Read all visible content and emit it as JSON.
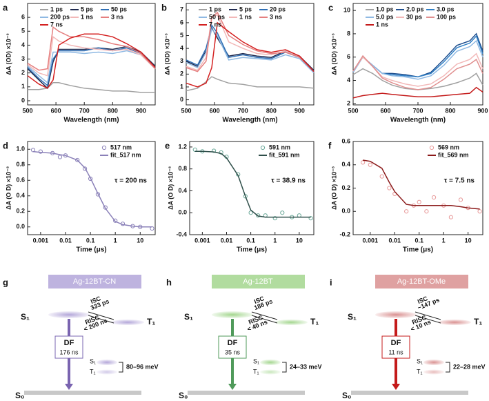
{
  "chart_data": [
    {
      "type": "line",
      "label": "a",
      "x_label": "Wavelength (nm)",
      "y_label": "ΔA (OD) ×10⁻³",
      "x": [
        500,
        540,
        570,
        590,
        610,
        650,
        700,
        750,
        800,
        850,
        900,
        950
      ],
      "xlim": [
        500,
        950
      ],
      "xticks": [
        500,
        600,
        700,
        800,
        900
      ],
      "ylim": [
        -0.3,
        7
      ],
      "yticks": [
        0,
        1,
        2,
        3,
        4,
        5,
        6
      ],
      "legend": "upper center",
      "legend_columns": 3,
      "series": [
        {
          "name": "1 ps",
          "color": "#a0a0a0",
          "values": [
            0.8,
            0.8,
            0.9,
            1.3,
            1.3,
            1.1,
            0.9,
            0.8,
            0.7,
            0.7,
            0.6,
            0.6
          ]
        },
        {
          "name": "5 ps",
          "color": "#1f2a4f",
          "values": [
            2.3,
            1.5,
            0.9,
            2.8,
            3.7,
            3.7,
            3.7,
            3.8,
            3.7,
            3.9,
            3.5,
            2.5
          ]
        },
        {
          "name": "50 ps",
          "color": "#2f6fb5",
          "values": [
            2.4,
            1.6,
            1.1,
            3.0,
            3.6,
            3.6,
            3.6,
            3.8,
            3.6,
            3.8,
            3.4,
            2.4
          ]
        },
        {
          "name": "200 ps",
          "color": "#8fb9e3",
          "values": [
            2.5,
            1.8,
            1.3,
            3.5,
            3.5,
            3.5,
            3.4,
            3.5,
            3.4,
            3.6,
            3.3,
            2.3
          ]
        },
        {
          "name": "1 ns",
          "color": "#f2b8b8",
          "values": [
            2.6,
            2.0,
            1.8,
            4.6,
            4.3,
            4.0,
            3.8,
            3.7,
            3.6,
            3.7,
            3.3,
            2.3
          ]
        },
        {
          "name": "3 ns",
          "color": "#e57f7f",
          "values": [
            2.7,
            2.2,
            2.3,
            5.3,
            5.0,
            4.6,
            4.6,
            4.4,
            4.1,
            3.9,
            3.4,
            2.3
          ]
        },
        {
          "name": "7 ns",
          "color": "#d42020",
          "values": [
            1.8,
            1.2,
            0.9,
            1.5,
            4.0,
            4.5,
            4.8,
            4.8,
            4.6,
            4.1,
            3.5,
            2.4
          ]
        }
      ]
    },
    {
      "type": "line",
      "label": "b",
      "x_label": "Wavelength (nm)",
      "y_label": "ΔA (OD) ×10⁻³",
      "x": [
        500,
        540,
        570,
        590,
        610,
        650,
        700,
        750,
        800,
        850,
        900,
        950
      ],
      "xlim": [
        500,
        950
      ],
      "xticks": [
        500,
        600,
        700,
        800,
        900
      ],
      "ylim": [
        -0.4,
        7.5
      ],
      "yticks": [
        0,
        1,
        2,
        3,
        4,
        5,
        6,
        7
      ],
      "legend": "upper center",
      "legend_columns": 3,
      "series": [
        {
          "name": "1 ps",
          "color": "#a0a0a0",
          "values": [
            0.7,
            0.9,
            1.4,
            1.8,
            1.6,
            1.3,
            1.2,
            1.0,
            1.0,
            1.0,
            1.0,
            0.9
          ]
        },
        {
          "name": "5 ps",
          "color": "#1f2a4f",
          "values": [
            3.0,
            2.6,
            3.8,
            5.6,
            4.8,
            3.4,
            3.6,
            3.4,
            3.3,
            3.8,
            3.4,
            2.3
          ]
        },
        {
          "name": "20 ps",
          "color": "#2f6fb5",
          "values": [
            3.1,
            2.7,
            4.0,
            5.8,
            5.2,
            3.3,
            3.5,
            3.3,
            3.2,
            3.7,
            3.3,
            2.2
          ]
        },
        {
          "name": "50 ps",
          "color": "#8fb9e3",
          "values": [
            2.9,
            2.5,
            3.7,
            5.5,
            5.0,
            3.1,
            3.3,
            3.2,
            3.1,
            3.5,
            3.2,
            2.1
          ]
        },
        {
          "name": "1 ns",
          "color": "#f2b8b8",
          "values": [
            2.6,
            2.3,
            3.3,
            6.5,
            6.6,
            4.5,
            4.0,
            3.6,
            3.5,
            3.8,
            3.4,
            2.2
          ]
        },
        {
          "name": "3 ns",
          "color": "#e57f7f",
          "values": [
            2.5,
            2.2,
            3.0,
            6.4,
            6.8,
            5.0,
            4.3,
            3.8,
            3.6,
            3.7,
            3.3,
            2.2
          ]
        },
        {
          "name": "7 ns",
          "color": "#d42020",
          "values": [
            1.3,
            1.0,
            1.3,
            2.5,
            6.0,
            5.3,
            4.5,
            3.9,
            3.7,
            3.9,
            3.4,
            2.2
          ]
        }
      ]
    },
    {
      "type": "line",
      "label": "c",
      "x_label": "Wavelength (nm)",
      "y_label": "ΔA (OD) ×10⁻³",
      "x": [
        500,
        530,
        560,
        590,
        620,
        660,
        700,
        740,
        780,
        820,
        860,
        880,
        900
      ],
      "xlim": [
        500,
        900
      ],
      "xticks": [
        500,
        600,
        700,
        800,
        900
      ],
      "ylim": [
        1.9,
        10.6
      ],
      "yticks": [
        2,
        4,
        6,
        8,
        10
      ],
      "legend": "upper center",
      "legend_columns": 3,
      "series": [
        {
          "name": "1.0 ps",
          "color": "#a0a0a0",
          "values": [
            4.5,
            5.0,
            4.6,
            4.0,
            3.6,
            3.3,
            3.2,
            3.3,
            3.5,
            3.8,
            4.2,
            4.6,
            3.6
          ]
        },
        {
          "name": "2.0 ps",
          "color": "#1f4f8f",
          "values": [
            4.8,
            6.0,
            5.3,
            4.6,
            4.6,
            4.5,
            4.3,
            4.7,
            5.8,
            7.0,
            7.4,
            8.0,
            6.5
          ]
        },
        {
          "name": "3.0 ps",
          "color": "#2f7fc5",
          "values": [
            4.7,
            6.0,
            5.3,
            4.6,
            4.5,
            4.4,
            4.3,
            4.6,
            5.6,
            6.8,
            7.2,
            7.8,
            6.3
          ]
        },
        {
          "name": "5.0 ps",
          "color": "#8fb9e3",
          "values": [
            4.7,
            6.0,
            5.3,
            4.6,
            4.4,
            4.3,
            4.1,
            4.4,
            5.3,
            6.5,
            6.9,
            7.4,
            6.0
          ]
        },
        {
          "name": "30 ps",
          "color": "#f2b8b8",
          "values": [
            4.8,
            6.0,
            5.2,
            4.3,
            4.0,
            3.7,
            3.5,
            3.7,
            4.4,
            5.4,
            5.8,
            6.3,
            5.0
          ]
        },
        {
          "name": "100 ps",
          "color": "#e08f8f",
          "values": [
            4.8,
            6.1,
            5.2,
            4.2,
            3.8,
            3.4,
            3.2,
            3.4,
            4.1,
            5.0,
            5.4,
            5.8,
            4.6
          ]
        },
        {
          "name": "1 ns",
          "color": "#c41a1a",
          "values": [
            2.5,
            2.7,
            2.8,
            2.9,
            2.8,
            2.7,
            2.6,
            2.6,
            2.7,
            2.8,
            2.9,
            3.4,
            3.0
          ]
        }
      ]
    },
    {
      "type": "scatter",
      "label": "d",
      "x_label": "Time (μs)",
      "y_label": "ΔA (O D) ×10⁻³",
      "xscale": "log",
      "annotation": "τ = 200 ns",
      "x": [
        0.0005,
        0.001,
        0.003,
        0.006,
        0.01,
        0.03,
        0.06,
        0.1,
        0.2,
        0.4,
        1,
        2,
        5,
        10,
        30
      ],
      "xlim": [
        0.0003,
        40
      ],
      "xticks": [
        0.001,
        0.01,
        0.1,
        1,
        10
      ],
      "ylim": [
        -0.1,
        1.1
      ],
      "yticks": [
        {
          "value": 0,
          "label": "0.0"
        },
        0.2,
        0.4,
        0.6,
        0.8,
        {
          "value": 1,
          "label": "1.0"
        }
      ],
      "legend": "upper right",
      "legend_columns": 1,
      "series": [
        {
          "name": "517 nm",
          "color": "#8a80b8",
          "mode": "markers",
          "values": [
            0.99,
            0.97,
            0.95,
            0.9,
            0.92,
            0.86,
            0.75,
            0.62,
            0.42,
            0.25,
            0.08,
            0.04,
            0.01,
            0.0,
            -0.02
          ]
        },
        {
          "name": "fit_517 nm",
          "color": "#8a80b8",
          "mode": "line",
          "values": [
            0.97,
            0.96,
            0.95,
            0.93,
            0.92,
            0.86,
            0.76,
            0.63,
            0.43,
            0.24,
            0.07,
            0.03,
            0.01,
            0.0,
            0.0
          ]
        }
      ]
    },
    {
      "type": "scatter",
      "label": "e",
      "x_label": "Time (μs)",
      "y_label": "ΔA (O D) ×10⁻³",
      "xscale": "log",
      "annotation": "τ = 38.9 ns",
      "x": [
        0.0005,
        0.001,
        0.003,
        0.006,
        0.01,
        0.03,
        0.06,
        0.1,
        0.2,
        0.4,
        1,
        2,
        5,
        10,
        30
      ],
      "xlim": [
        0.0003,
        40
      ],
      "xticks": [
        0.001,
        0.01,
        0.1,
        1,
        10
      ],
      "ylim": [
        -0.4,
        1.3
      ],
      "yticks": [
        -0.4,
        {
          "value": 0,
          "label": "0.0"
        },
        0.4,
        0.8,
        1.2
      ],
      "legend": "upper right",
      "legend_columns": 1,
      "series": [
        {
          "name": "591 nm",
          "color": "#6aa898",
          "mode": "markers",
          "values": [
            1.15,
            1.12,
            1.13,
            1.1,
            1.02,
            0.7,
            0.3,
            0.0,
            -0.05,
            -0.05,
            -0.1,
            0.0,
            -0.08,
            -0.05,
            -0.1
          ]
        },
        {
          "name": "fit_591 nm",
          "color": "#2f4f4a",
          "mode": "line",
          "values": [
            1.12,
            1.12,
            1.11,
            1.08,
            1.0,
            0.68,
            0.3,
            0.05,
            -0.06,
            -0.08,
            -0.08,
            -0.08,
            -0.08,
            -0.08,
            -0.08
          ]
        }
      ]
    },
    {
      "type": "scatter",
      "label": "f",
      "x_label": "Time (μs)",
      "y_label": "ΔA (O D) ×10⁻³",
      "xscale": "log",
      "annotation": "τ = 7.5 ns",
      "x": [
        0.0005,
        0.001,
        0.003,
        0.006,
        0.01,
        0.03,
        0.06,
        0.1,
        0.2,
        0.4,
        1,
        2,
        5,
        10,
        30
      ],
      "xlim": [
        0.0002,
        40
      ],
      "xticks": [
        0.001,
        0.01,
        0.1,
        1,
        10
      ],
      "ylim": [
        -0.2,
        0.6
      ],
      "yticks": [
        -0.2,
        {
          "value": 0,
          "label": "0.0"
        },
        0.2,
        0.4,
        0.6
      ],
      "legend": "upper right",
      "legend_columns": 1,
      "series": [
        {
          "name": "569 nm",
          "color": "#e89a9a",
          "mode": "markers",
          "values": [
            0.42,
            0.4,
            0.3,
            0.2,
            0.15,
            0.0,
            0.05,
            0.08,
            0.0,
            0.12,
            0.05,
            -0.05,
            0.1,
            0.03,
            0.0
          ]
        },
        {
          "name": "fit_569 nm",
          "color": "#8b1a1a",
          "mode": "line",
          "values": [
            0.44,
            0.43,
            0.37,
            0.25,
            0.17,
            0.06,
            0.05,
            0.05,
            0.05,
            0.05,
            0.05,
            0.05,
            0.04,
            0.03,
            0.02
          ]
        }
      ]
    }
  ],
  "diagrams": [
    {
      "label": "g",
      "title": "Ag-12BT-CN",
      "color": "#b3a6d9",
      "arrow_color": "#7a64b0",
      "s1": "S₁",
      "t1": "T₁",
      "s0": "S₀",
      "isc_label": "ISC",
      "isc_time": "333 ps",
      "risc_label": "RISC",
      "risc_time": "< 200 ns",
      "df_label": "DF",
      "df_time": "176 ns",
      "gap": "80–96 meV"
    },
    {
      "label": "h",
      "title": "Ag-12BT",
      "color": "#a3d68e",
      "arrow_color": "#4f9a5a",
      "s1": "S₁",
      "t1": "T₁",
      "s0": "S₀",
      "isc_label": "ISC",
      "isc_time": "186 ps",
      "risc_label": "RISC",
      "risc_time": "< 40 ns",
      "df_label": "DF",
      "df_time": "35 ns",
      "gap": "24–33 meV"
    },
    {
      "label": "i",
      "title": "Ag-12BT-OMe",
      "color": "#d99090",
      "arrow_color": "#c41a1a",
      "s1": "S₁",
      "t1": "T₁",
      "s0": "S₀",
      "isc_label": "ISC",
      "isc_time": "~147 ps",
      "risc_label": "RISC",
      "risc_time": "< 10 ns",
      "df_label": "DF",
      "df_time": "11 ns",
      "gap": "22–28 meV"
    }
  ]
}
